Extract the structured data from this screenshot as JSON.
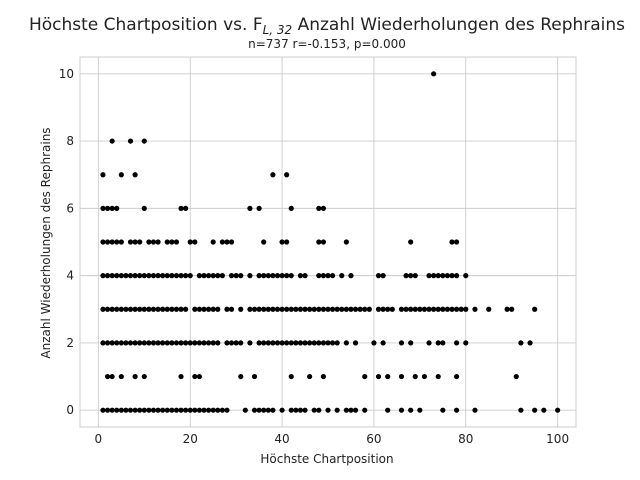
{
  "chart_data": {
    "type": "scatter",
    "title": "Höchste Chartposition vs. F",
    "title_sub": "L, 32",
    "title_rest": " Anzahl Wiederholungen des Rephrains",
    "subtitle": "n=737 r=-0.153, p=0.000",
    "xlabel": "Höchste Chartposition",
    "ylabel": "Anzahl Wiederholungen des Rephrains",
    "xlim": [
      -4,
      104
    ],
    "ylim": [
      -0.5,
      10.5
    ],
    "xticks": [
      0,
      20,
      40,
      60,
      80,
      100
    ],
    "yticks": [
      0,
      2,
      4,
      6,
      8,
      10
    ],
    "grid": true,
    "marker_color": "#000000",
    "rows": [
      {
        "y": 0,
        "x": [
          1,
          2,
          3,
          4,
          5,
          6,
          7,
          8,
          9,
          10,
          11,
          12,
          13,
          14,
          15,
          16,
          17,
          18,
          19,
          20,
          21,
          22,
          23,
          24,
          25,
          26,
          27,
          28,
          32,
          34,
          35,
          36,
          37,
          38,
          40,
          42,
          43,
          44,
          45,
          47,
          48,
          50,
          52,
          54,
          55,
          56,
          58,
          63,
          66,
          68,
          70,
          75,
          78,
          82,
          92,
          95,
          97,
          100
        ]
      },
      {
        "y": 1,
        "x": [
          2,
          3,
          5,
          8,
          10,
          18,
          21,
          22,
          31,
          34,
          42,
          46,
          49,
          58,
          61,
          63,
          66,
          69,
          71,
          74,
          78,
          91
        ]
      },
      {
        "y": 2,
        "x": [
          1,
          2,
          3,
          4,
          5,
          6,
          7,
          8,
          9,
          10,
          11,
          12,
          13,
          14,
          15,
          16,
          17,
          18,
          19,
          20,
          21,
          22,
          23,
          24,
          25,
          26,
          28,
          29,
          30,
          31,
          33,
          35,
          36,
          37,
          38,
          39,
          40,
          41,
          42,
          43,
          44,
          45,
          46,
          47,
          48,
          49,
          50,
          51,
          52,
          54,
          56,
          60,
          62,
          66,
          68,
          72,
          74,
          75,
          78,
          80,
          92,
          94
        ]
      },
      {
        "y": 3,
        "x": [
          1,
          2,
          3,
          4,
          5,
          6,
          7,
          8,
          9,
          10,
          11,
          12,
          13,
          14,
          15,
          16,
          17,
          18,
          19,
          21,
          22,
          23,
          24,
          25,
          26,
          28,
          29,
          31,
          33,
          34,
          35,
          36,
          37,
          38,
          39,
          40,
          41,
          42,
          43,
          44,
          45,
          46,
          47,
          48,
          49,
          50,
          51,
          52,
          53,
          54,
          55,
          56,
          57,
          58,
          59,
          61,
          62,
          63,
          64,
          66,
          67,
          68,
          69,
          70,
          71,
          72,
          73,
          74,
          75,
          76,
          77,
          78,
          79,
          80,
          82,
          85,
          89,
          90,
          95
        ]
      },
      {
        "y": 4,
        "x": [
          1,
          2,
          3,
          4,
          5,
          6,
          7,
          8,
          9,
          10,
          11,
          12,
          13,
          14,
          15,
          16,
          17,
          18,
          19,
          20,
          22,
          23,
          24,
          25,
          26,
          27,
          29,
          30,
          31,
          33,
          35,
          36,
          37,
          38,
          39,
          40,
          41,
          42,
          44,
          45,
          48,
          49,
          50,
          51,
          53,
          55,
          61,
          62,
          67,
          68,
          69,
          72,
          73,
          74,
          75,
          76,
          77,
          78,
          80
        ]
      },
      {
        "y": 5,
        "x": [
          1,
          2,
          3,
          4,
          5,
          7,
          8,
          9,
          11,
          12,
          13,
          15,
          16,
          17,
          20,
          21,
          25,
          27,
          28,
          29,
          36,
          40,
          41,
          48,
          49,
          54,
          68,
          77,
          78
        ]
      },
      {
        "y": 6,
        "x": [
          1,
          2,
          3,
          4,
          10,
          18,
          19,
          33,
          35,
          42,
          48,
          49
        ]
      },
      {
        "y": 7,
        "x": [
          1,
          5,
          8,
          38,
          41
        ]
      },
      {
        "y": 8,
        "x": [
          3,
          7,
          10
        ]
      },
      {
        "y": 10,
        "x": [
          73
        ]
      }
    ]
  }
}
